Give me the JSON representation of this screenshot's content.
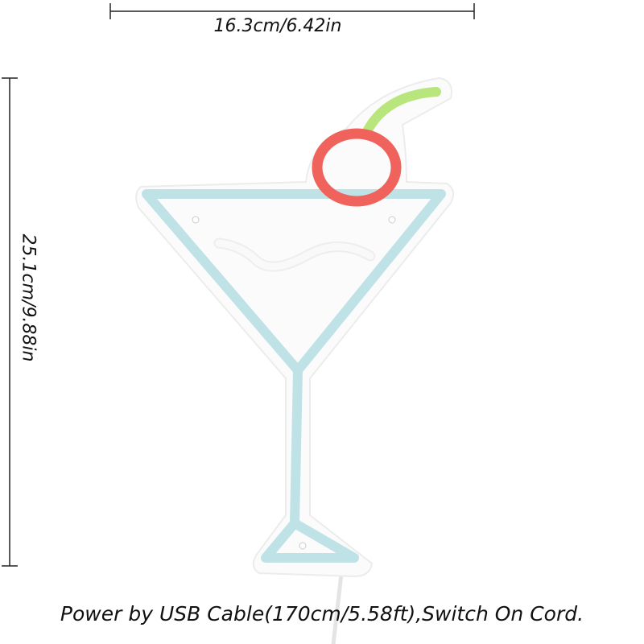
{
  "dimensions": {
    "width_label": "16.3cm/6.42in",
    "height_label": "25.1cm/9.88in"
  },
  "caption": "Power by USB Cable(170cm/5.58ft),Switch On Cord.",
  "colors": {
    "glass_neon": "#bfe2e7",
    "cherry_neon": "#f0625c",
    "straw_neon": "#b8e67c",
    "liquid_neon": "#f7f7f7",
    "backing": "#fbfbfb"
  }
}
